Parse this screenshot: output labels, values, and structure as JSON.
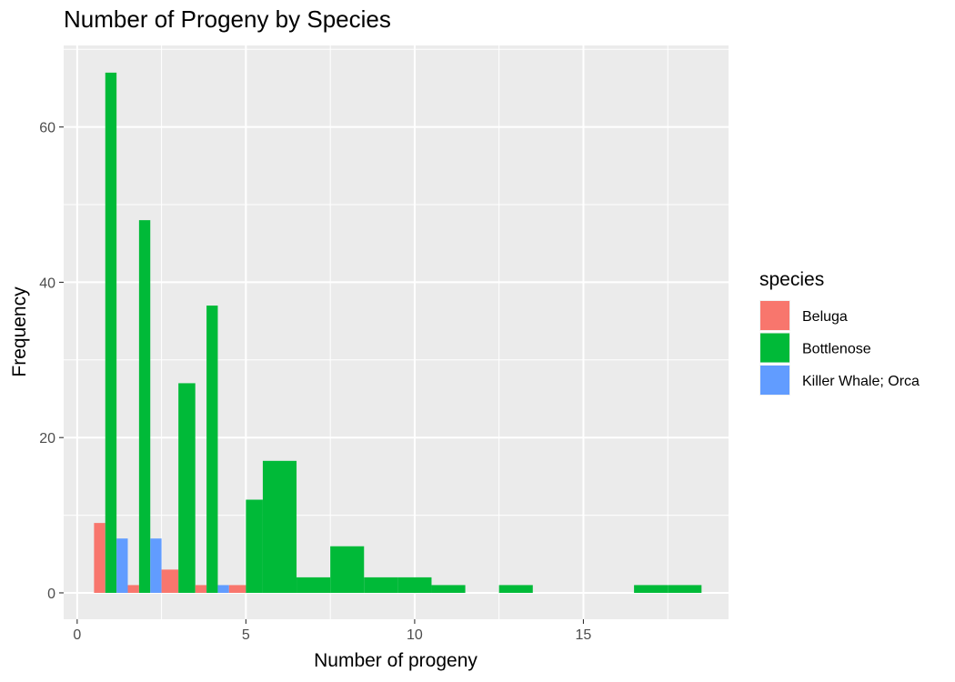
{
  "chart_data": {
    "type": "bar",
    "title": "Number of Progeny by Species",
    "xlabel": "Number of progeny",
    "ylabel": "Frequency",
    "xlim": [
      -0.4,
      19.3
    ],
    "ylim": [
      -3.4,
      70.5
    ],
    "x_ticks": [
      0,
      5,
      10,
      15
    ],
    "x_tick_labels": [
      "0",
      "5",
      "10",
      "15"
    ],
    "y_ticks": [
      0,
      20,
      40,
      60
    ],
    "y_tick_labels": [
      "0",
      "20",
      "40",
      "60"
    ],
    "grid": true,
    "position": "dodge",
    "legend": {
      "title": "species",
      "placement": "right",
      "entries": [
        "Beluga",
        "Bottlenose",
        "Killer Whale; Orca"
      ]
    },
    "series": [
      {
        "name": "Beluga",
        "color": "#F8766D",
        "points": [
          {
            "x": 1,
            "y": 9
          },
          {
            "x": 2,
            "y": 1
          },
          {
            "x": 3,
            "y": 3
          },
          {
            "x": 4,
            "y": 1
          },
          {
            "x": 5,
            "y": 1
          }
        ]
      },
      {
        "name": "Bottlenose",
        "color": "#00BA38",
        "points": [
          {
            "x": 1,
            "y": 67
          },
          {
            "x": 2,
            "y": 48
          },
          {
            "x": 3,
            "y": 27
          },
          {
            "x": 4,
            "y": 37
          },
          {
            "x": 5,
            "y": 12
          },
          {
            "x": 6,
            "y": 17
          },
          {
            "x": 7,
            "y": 2
          },
          {
            "x": 8,
            "y": 6
          },
          {
            "x": 9,
            "y": 2
          },
          {
            "x": 10,
            "y": 2
          },
          {
            "x": 11,
            "y": 1
          },
          {
            "x": 13,
            "y": 1
          },
          {
            "x": 17,
            "y": 1
          },
          {
            "x": 18,
            "y": 1
          }
        ]
      },
      {
        "name": "Killer Whale; Orca",
        "color": "#619CFF",
        "points": [
          {
            "x": 1,
            "y": 7
          },
          {
            "x": 2,
            "y": 7
          },
          {
            "x": 4,
            "y": 1
          }
        ]
      }
    ]
  }
}
